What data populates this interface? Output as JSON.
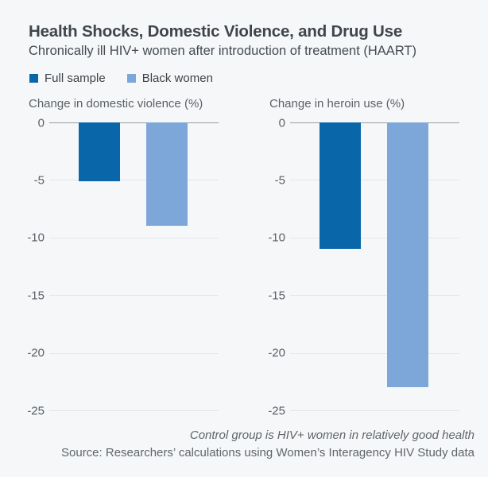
{
  "header": {
    "title": "Health Shocks, Domestic Violence, and Drug Use",
    "subtitle": "Chronically ill HIV+ women after introduction of treatment (HAART)"
  },
  "legend": {
    "items": [
      {
        "label": "Full sample",
        "color": "#0967a9"
      },
      {
        "label": "Black women",
        "color": "#7ea7d9"
      }
    ]
  },
  "chart_data": [
    {
      "type": "bar",
      "title": "Change in domestic violence (%)",
      "categories": [
        "Full sample",
        "Black women"
      ],
      "values": [
        -5.1,
        -9
      ],
      "ylim": [
        -25,
        0
      ],
      "y_ticks": [
        0,
        -5,
        -10,
        -15,
        -20,
        -25
      ],
      "grid": true,
      "legend_position": "top",
      "bar_colors": [
        "#0967a9",
        "#7ea7d9"
      ]
    },
    {
      "type": "bar",
      "title": "Change in heroin use (%)",
      "categories": [
        "Full sample",
        "Black women"
      ],
      "values": [
        -11,
        -23
      ],
      "ylim": [
        -25,
        0
      ],
      "y_ticks": [
        0,
        -5,
        -10,
        -15,
        -20,
        -25
      ],
      "grid": true,
      "legend_position": "top",
      "bar_colors": [
        "#0967a9",
        "#7ea7d9"
      ]
    }
  ],
  "footer": {
    "note": "Control group is HIV+ women in relatively good health",
    "source": "Source: Researchers’ calculations using Women’s Interagency HIV Study data"
  },
  "colors": {
    "background": "#f5f7f9",
    "bar_dark": "#0967a9",
    "bar_light": "#7ea7d9",
    "zero_line": "#9aa1a8",
    "gridline": "#e4e7ea"
  }
}
